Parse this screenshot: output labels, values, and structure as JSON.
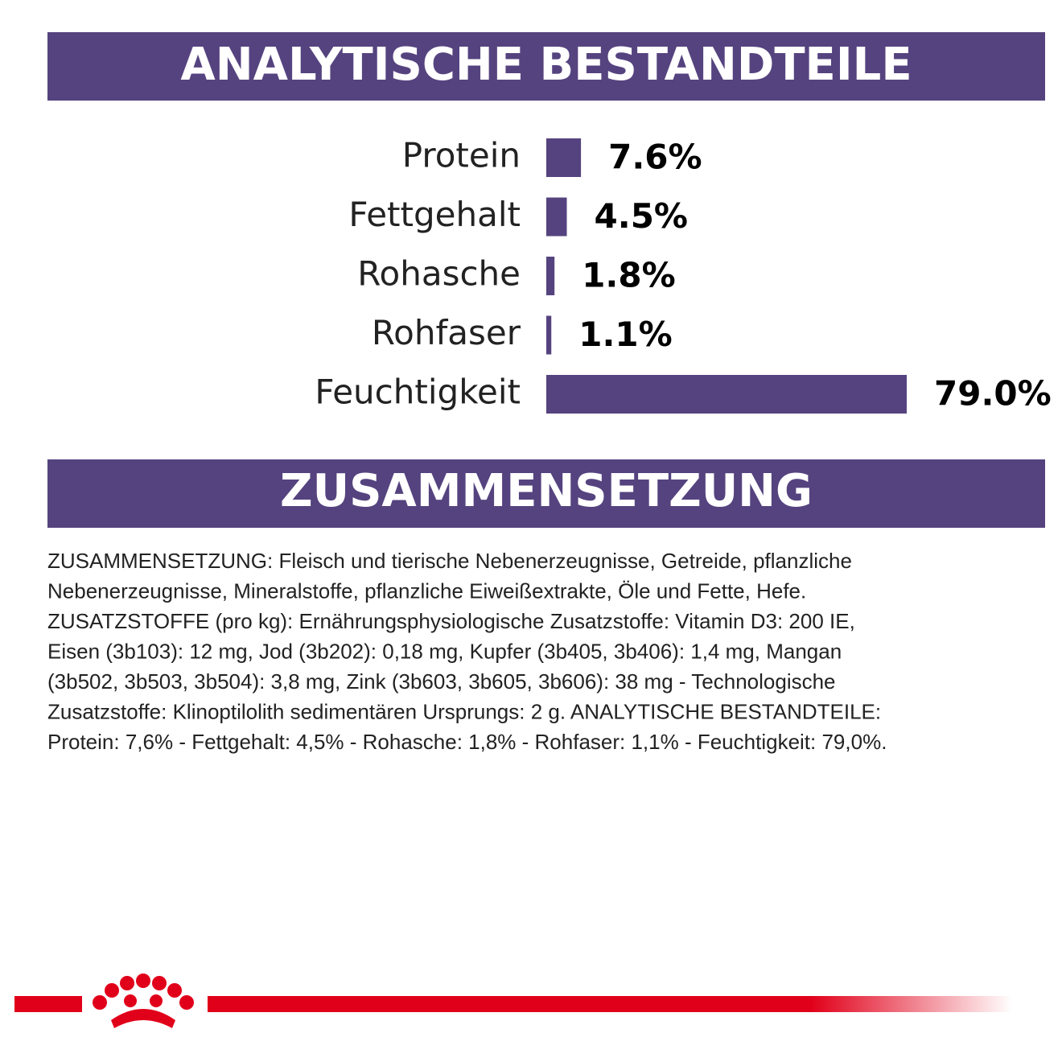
{
  "chart_data": {
    "type": "bar",
    "orientation": "horizontal",
    "title": "ANALYTISCHE BESTANDTEILE",
    "categories": [
      "Protein",
      "Fettgehalt",
      "Rohasche",
      "Rohfaser",
      "Feuchtigkeit"
    ],
    "values": [
      7.6,
      4.5,
      1.8,
      1.1,
      79.0
    ],
    "value_labels": [
      "7.6%",
      "4.5%",
      "1.8%",
      "1.1%",
      "79.0%"
    ],
    "color": "#55437f"
  },
  "composition": {
    "title": "ZUSAMMENSETZUNG",
    "lines": [
      "ZUSAMMENSETZUNG: Fleisch und tierische Nebenerzeugnisse, Getreide, pflanzliche",
      "Nebenerzeugnisse, Mineralstoffe, pflanzliche Eiweißextrakte, Öle und Fette, Hefe.",
      "ZUSATZSTOFFE (pro kg): Ernährungsphysiologische Zusatzstoffe: Vitamin D3: 200 IE,",
      "Eisen (3b103): 12 mg, Jod (3b202): 0,18 mg, Kupfer (3b405, 3b406): 1,4 mg, Mangan",
      "(3b502, 3b503, 3b504): 3,8 mg, Zink (3b603, 3b605, 3b606): 38 mg - Technologische",
      "Zusatzstoffe: Klinoptilolith sedimentären Ursprungs: 2 g. ANALYTISCHE BESTANDTEILE:",
      "Protein: 7,6% - Fettgehalt: 4,5% - Rohasche: 1,8% - Rohfaser: 1,1% - Feuchtigkeit: 79,0%."
    ]
  }
}
